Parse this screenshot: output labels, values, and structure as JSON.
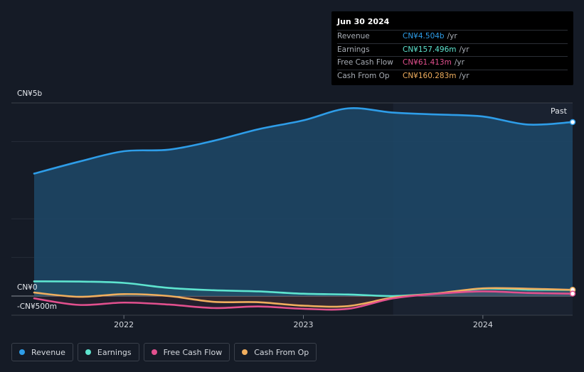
{
  "tooltip": {
    "date": "Jun 30 2024",
    "rows": [
      {
        "name": "Revenue",
        "value": "CN¥4.504b",
        "unit": "/yr",
        "color": "#2e9de8"
      },
      {
        "name": "Earnings",
        "value": "CN¥157.496m",
        "unit": "/yr",
        "color": "#5ee4cf"
      },
      {
        "name": "Free Cash Flow",
        "value": "CN¥61.413m",
        "unit": "/yr",
        "color": "#e2508e"
      },
      {
        "name": "Cash From Op",
        "value": "CN¥160.283m",
        "unit": "/yr",
        "color": "#f0ae5e"
      }
    ]
  },
  "past_label": "Past",
  "legend": [
    {
      "label": "Revenue",
      "color": "#2e9de8"
    },
    {
      "label": "Earnings",
      "color": "#5ee4cf"
    },
    {
      "label": "Free Cash Flow",
      "color": "#e2508e"
    },
    {
      "label": "Cash From Op",
      "color": "#f0ae5e"
    }
  ],
  "chart_data": {
    "type": "line",
    "y_axis_labels": {
      "top": "CN¥5b",
      "zero": "CN¥0",
      "bottom": "-CN¥500m"
    },
    "ylim": [
      -500,
      5000
    ],
    "y_unit": "CN¥m",
    "xlim": [
      2021.5,
      2024.5
    ],
    "x_ticks": [
      {
        "value": 2022,
        "label": "2022"
      },
      {
        "value": 2023,
        "label": "2023"
      },
      {
        "value": 2024,
        "label": "2024"
      }
    ],
    "past_region_start": 2023.5,
    "grid": true,
    "series": [
      {
        "name": "Revenue",
        "color": "#2e9de8",
        "area": true,
        "points": [
          [
            2021.5,
            3170
          ],
          [
            2021.75,
            3480
          ],
          [
            2022.0,
            3750
          ],
          [
            2022.25,
            3790
          ],
          [
            2022.5,
            4020
          ],
          [
            2022.75,
            4320
          ],
          [
            2023.0,
            4550
          ],
          [
            2023.25,
            4860
          ],
          [
            2023.5,
            4750
          ],
          [
            2023.75,
            4700
          ],
          [
            2024.0,
            4650
          ],
          [
            2024.25,
            4440
          ],
          [
            2024.5,
            4504
          ]
        ]
      },
      {
        "name": "Earnings",
        "color": "#5ee4cf",
        "area": false,
        "points": [
          [
            2021.5,
            380
          ],
          [
            2021.75,
            375
          ],
          [
            2022.0,
            340
          ],
          [
            2022.25,
            210
          ],
          [
            2022.5,
            150
          ],
          [
            2022.75,
            120
          ],
          [
            2023.0,
            60
          ],
          [
            2023.25,
            40
          ],
          [
            2023.5,
            0
          ],
          [
            2023.75,
            70
          ],
          [
            2024.0,
            190
          ],
          [
            2024.25,
            165
          ],
          [
            2024.5,
            157
          ]
        ]
      },
      {
        "name": "Free Cash Flow",
        "color": "#e2508e",
        "area": false,
        "points": [
          [
            2021.5,
            -60
          ],
          [
            2021.75,
            -230
          ],
          [
            2022.0,
            -170
          ],
          [
            2022.25,
            -220
          ],
          [
            2022.5,
            -310
          ],
          [
            2022.75,
            -270
          ],
          [
            2023.0,
            -330
          ],
          [
            2023.25,
            -330
          ],
          [
            2023.5,
            -60
          ],
          [
            2023.75,
            60
          ],
          [
            2024.0,
            120
          ],
          [
            2024.25,
            80
          ],
          [
            2024.5,
            61
          ]
        ]
      },
      {
        "name": "Cash From Op",
        "color": "#f0ae5e",
        "area": false,
        "points": [
          [
            2021.5,
            90
          ],
          [
            2021.75,
            -20
          ],
          [
            2022.0,
            50
          ],
          [
            2022.25,
            0
          ],
          [
            2022.5,
            -150
          ],
          [
            2022.75,
            -160
          ],
          [
            2023.0,
            -250
          ],
          [
            2023.25,
            -260
          ],
          [
            2023.5,
            -40
          ],
          [
            2023.75,
            70
          ],
          [
            2024.0,
            200
          ],
          [
            2024.25,
            190
          ],
          [
            2024.5,
            160
          ]
        ]
      }
    ]
  }
}
